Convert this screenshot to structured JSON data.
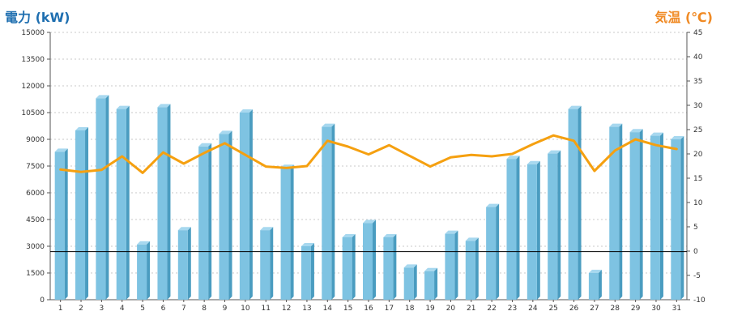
{
  "chart_data": {
    "type": "bar",
    "categories": [
      "1",
      "2",
      "3",
      "4",
      "5",
      "6",
      "7",
      "8",
      "9",
      "10",
      "11",
      "12",
      "13",
      "14",
      "15",
      "16",
      "17",
      "18",
      "19",
      "20",
      "21",
      "22",
      "23",
      "24",
      "25",
      "26",
      "27",
      "28",
      "29",
      "30",
      "31"
    ],
    "series": [
      {
        "type": "bar",
        "axis": "left",
        "values": [
          8300,
          9500,
          11300,
          10700,
          3100,
          10800,
          3900,
          8600,
          9300,
          10500,
          3900,
          7400,
          3000,
          9700,
          3500,
          4300,
          3500,
          1800,
          1600,
          3700,
          3300,
          5200,
          7900,
          7600,
          8200,
          10700,
          1500,
          9700,
          9400,
          9200,
          9000
        ],
        "color": "#7ec3e2"
      },
      {
        "type": "line",
        "axis": "right",
        "values": [
          16.8,
          16.3,
          16.7,
          19.5,
          16.1,
          20.3,
          18.0,
          20.2,
          22.2,
          19.8,
          17.4,
          17.1,
          17.5,
          22.7,
          21.5,
          19.9,
          21.8,
          19.6,
          17.4,
          19.3,
          19.8,
          19.5,
          20.0,
          22.0,
          23.8,
          22.7,
          16.5,
          20.7,
          23.0,
          21.8,
          21.0
        ]
      }
    ],
    "y_left": {
      "label": "電力 (kW)",
      "range": [
        0,
        15000
      ],
      "ticks": [
        "0",
        "1500",
        "3000",
        "4500",
        "6000",
        "7500",
        "9000",
        "10500",
        "12000",
        "13500",
        "15000"
      ]
    },
    "y_right": {
      "label": "気温 (℃)",
      "range": [
        -10,
        45
      ],
      "ticks": [
        "-10",
        "-5",
        "0",
        "5",
        "10",
        "15",
        "20",
        "25",
        "30",
        "35",
        "40",
        "45"
      ]
    },
    "reference_line_value": 2700,
    "grid": true,
    "colors": {
      "left_axis_title": "#1f6fb0",
      "right_axis_title": "#f08a24",
      "bar_face": "#7ec3e2",
      "bar_side": "#4a9cc0",
      "bar_top": "#a7d8ef",
      "line": "#f5a010",
      "grid": "#c8c8c8",
      "reference_line": "#000000"
    }
  }
}
